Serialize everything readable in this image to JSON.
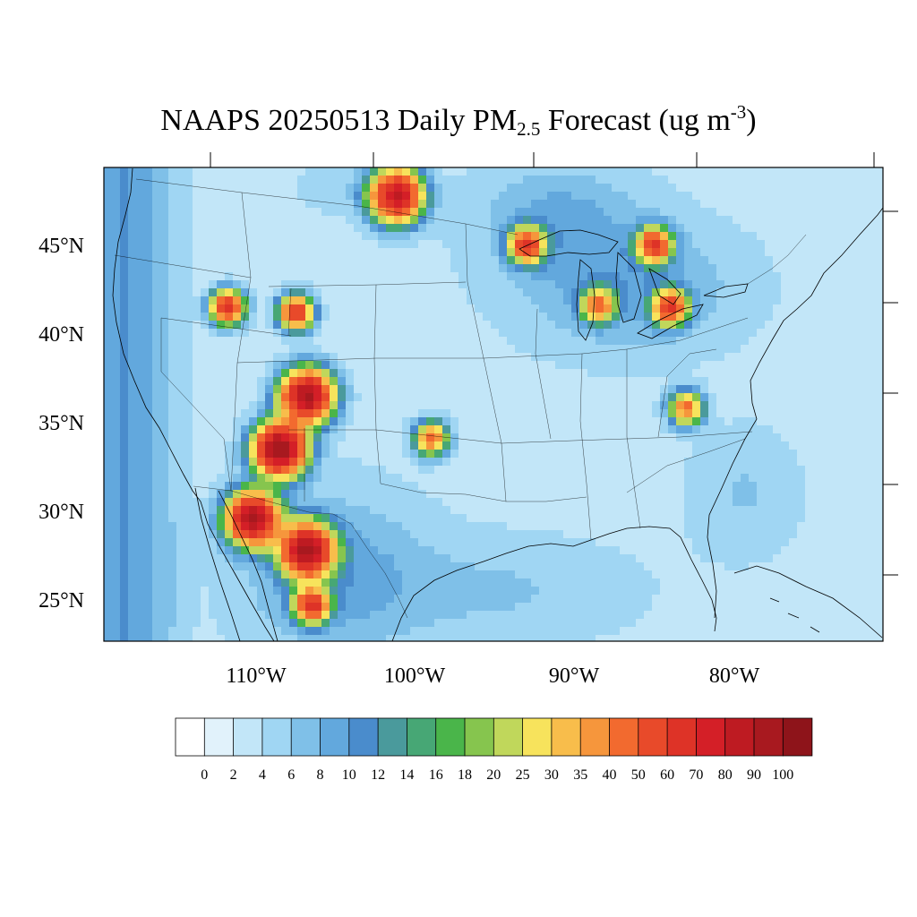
{
  "title": {
    "pre": "NAAPS 20250513 Daily PM",
    "sub": "2.5",
    "mid": " Forecast (ug m",
    "sup": "-3",
    "post": ")"
  },
  "axes": {
    "lat_labels": [
      "45°N",
      "40°N",
      "35°N",
      "30°N",
      "25°N"
    ],
    "lon_labels": [
      "110°W",
      "100°W",
      "90°W",
      "80°W"
    ]
  },
  "colorbar": {
    "labels": [
      "0",
      "2",
      "4",
      "6",
      "8",
      "10",
      "12",
      "14",
      "16",
      "18",
      "20",
      "25",
      "30",
      "35",
      "40",
      "50",
      "60",
      "70",
      "80",
      "90",
      "100"
    ],
    "colors": [
      "#ffffff",
      "#e1f2fb",
      "#c2e6f8",
      "#a0d6f3",
      "#7fc0e8",
      "#62a8dd",
      "#4a8ccc",
      "#4a9a9c",
      "#47a775",
      "#4ab54a",
      "#86c54e",
      "#c0d75b",
      "#f7e35c",
      "#f8bd4b",
      "#f6963c",
      "#f26a2f",
      "#e84a2a",
      "#de3327",
      "#d41f27",
      "#be1b22",
      "#a8191f",
      "#8e141a"
    ]
  },
  "map": {
    "region": "Contiguous United States",
    "lat_range": [
      22.5,
      49.5
    ],
    "lon_range": [
      -119.5,
      -70
    ],
    "field": "PM2.5 daily mean concentration",
    "hotspots": [
      {
        "name": "Arizona / New Mexico",
        "lon": -108.5,
        "lat": 33.5,
        "peak": 100
      },
      {
        "name": "Northern New Mexico",
        "lon": -106.8,
        "lat": 36.5,
        "peak": 90
      },
      {
        "name": "Sonora",
        "lon": -110.2,
        "lat": 29.6,
        "peak": 90
      },
      {
        "name": "Chihuahua",
        "lon": -106.8,
        "lat": 27.8,
        "peak": 90
      },
      {
        "name": "Durango",
        "lon": -106.5,
        "lat": 24.7,
        "peak": 60
      },
      {
        "name": "North Dakota",
        "lon": -101.2,
        "lat": 47.8,
        "peak": 80
      },
      {
        "name": "Lake Superior west",
        "lon": -93.0,
        "lat": 45.0,
        "peak": 60
      },
      {
        "name": "Northern Michigan",
        "lon": -85.0,
        "lat": 45.0,
        "peak": 60
      },
      {
        "name": "Lake Erie",
        "lon": -84.0,
        "lat": 41.5,
        "peak": 60
      },
      {
        "name": "Northern Illinois",
        "lon": -88.5,
        "lat": 41.6,
        "peak": 40
      },
      {
        "name": "Oklahoma",
        "lon": -99.0,
        "lat": 34.1,
        "peak": 40
      },
      {
        "name": "Virginia",
        "lon": -83.0,
        "lat": 35.8,
        "peak": 40
      },
      {
        "name": "Idaho",
        "lon": -111.8,
        "lat": 41.5,
        "peak": 60
      },
      {
        "name": "Wyoming",
        "lon": -107.5,
        "lat": 41.2,
        "peak": 60
      }
    ]
  }
}
